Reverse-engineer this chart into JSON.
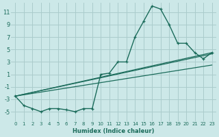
{
  "xlabel": "Humidex (Indice chaleur)",
  "ylabel": "",
  "bg_color": "#cce8e8",
  "grid_color": "#aacccc",
  "line_color": "#1a6b5a",
  "xlim": [
    -0.5,
    23.5
  ],
  "ylim": [
    -6.5,
    12.5
  ],
  "xticks": [
    0,
    1,
    2,
    3,
    4,
    5,
    6,
    7,
    8,
    9,
    10,
    11,
    12,
    13,
    14,
    15,
    16,
    17,
    18,
    19,
    20,
    21,
    22,
    23
  ],
  "yticks": [
    -5,
    -3,
    -1,
    1,
    3,
    5,
    7,
    9,
    11
  ],
  "curve1_x": [
    0,
    1,
    2,
    3,
    4,
    5,
    6,
    7,
    8,
    9,
    10,
    11,
    12,
    13,
    14,
    15,
    16,
    17,
    18,
    19,
    20,
    21,
    22,
    23
  ],
  "curve1_y": [
    -2.5,
    -4.0,
    -4.5,
    -5.0,
    -4.5,
    -4.5,
    -4.7,
    -5.0,
    -4.5,
    -4.5,
    1.0,
    1.2,
    3.0,
    3.0,
    7.0,
    9.5,
    12.0,
    11.5,
    9.0,
    6.0,
    6.0,
    4.5,
    3.5,
    4.5
  ],
  "line1_x": [
    0,
    23
  ],
  "line1_y": [
    -2.5,
    4.5
  ],
  "line2_x": [
    0,
    23
  ],
  "line2_y": [
    -2.5,
    4.3
  ],
  "line3_x": [
    0,
    23
  ],
  "line3_y": [
    -2.5,
    2.5
  ]
}
